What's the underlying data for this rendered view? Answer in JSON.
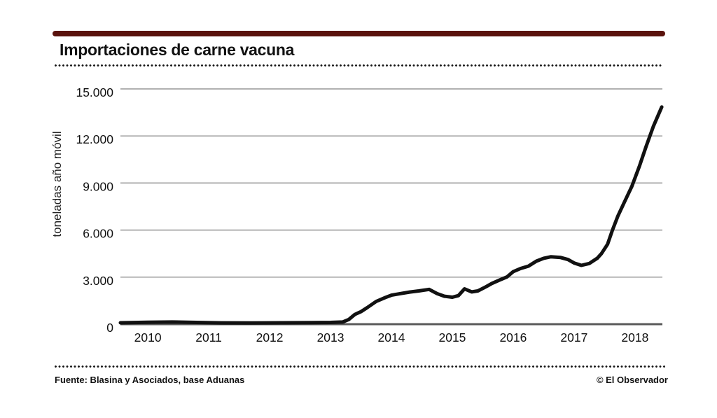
{
  "header": {
    "title": "Importaciones de carne vacuna"
  },
  "footer": {
    "source": "Fuente: Blasina y Asociados, base Aduanas",
    "credit": "© El Observador"
  },
  "colors": {
    "accent_bar": "#5a130d",
    "gridline": "#a6a6a6",
    "axis": "#5a5a5a",
    "line": "#111111",
    "tick_text": "#111111"
  },
  "chart_data": {
    "type": "line",
    "title": "Importaciones de carne vacuna",
    "xlabel": "",
    "ylabel": "toneladas año móvil",
    "xlim": [
      2009.55,
      2018.45
    ],
    "ylim": [
      0,
      15000
    ],
    "grid": "horizontal",
    "legend": "none",
    "x_ticks": {
      "values": [
        2010,
        2011,
        2012,
        2013,
        2014,
        2015,
        2016,
        2017,
        2018
      ],
      "labels": [
        "2010",
        "2011",
        "2012",
        "2013",
        "2014",
        "2015",
        "2016",
        "2017",
        "2018"
      ]
    },
    "y_ticks": {
      "values": [
        0,
        3000,
        6000,
        9000,
        12000,
        15000
      ],
      "labels": [
        "0",
        "3.000",
        "6.000",
        "9.000",
        "12.000",
        "15.000"
      ]
    },
    "series": [
      {
        "name": "importaciones de carne vacuna (toneladas año móvil)",
        "color": "#111111",
        "points": [
          [
            2009.55,
            90
          ],
          [
            2010.0,
            120
          ],
          [
            2010.4,
            140
          ],
          [
            2010.8,
            110
          ],
          [
            2011.2,
            85
          ],
          [
            2011.7,
            80
          ],
          [
            2012.2,
            90
          ],
          [
            2012.7,
            100
          ],
          [
            2013.0,
            110
          ],
          [
            2013.2,
            140
          ],
          [
            2013.3,
            300
          ],
          [
            2013.4,
            620
          ],
          [
            2013.5,
            800
          ],
          [
            2013.6,
            1050
          ],
          [
            2013.75,
            1450
          ],
          [
            2013.9,
            1700
          ],
          [
            2014.0,
            1850
          ],
          [
            2014.15,
            1950
          ],
          [
            2014.3,
            2050
          ],
          [
            2014.45,
            2120
          ],
          [
            2014.62,
            2220
          ],
          [
            2014.75,
            1950
          ],
          [
            2014.87,
            1780
          ],
          [
            2015.0,
            1720
          ],
          [
            2015.1,
            1820
          ],
          [
            2015.2,
            2250
          ],
          [
            2015.32,
            2060
          ],
          [
            2015.42,
            2120
          ],
          [
            2015.55,
            2380
          ],
          [
            2015.65,
            2600
          ],
          [
            2015.78,
            2820
          ],
          [
            2015.9,
            3020
          ],
          [
            2016.0,
            3350
          ],
          [
            2016.12,
            3550
          ],
          [
            2016.25,
            3700
          ],
          [
            2016.38,
            4020
          ],
          [
            2016.5,
            4200
          ],
          [
            2016.62,
            4300
          ],
          [
            2016.78,
            4250
          ],
          [
            2016.9,
            4120
          ],
          [
            2017.0,
            3900
          ],
          [
            2017.12,
            3750
          ],
          [
            2017.25,
            3870
          ],
          [
            2017.38,
            4200
          ],
          [
            2017.45,
            4500
          ],
          [
            2017.55,
            5100
          ],
          [
            2017.63,
            6000
          ],
          [
            2017.72,
            6900
          ],
          [
            2017.84,
            7900
          ],
          [
            2017.95,
            8800
          ],
          [
            2018.07,
            10050
          ],
          [
            2018.18,
            11300
          ],
          [
            2018.3,
            12600
          ],
          [
            2018.44,
            13850
          ]
        ]
      }
    ]
  }
}
